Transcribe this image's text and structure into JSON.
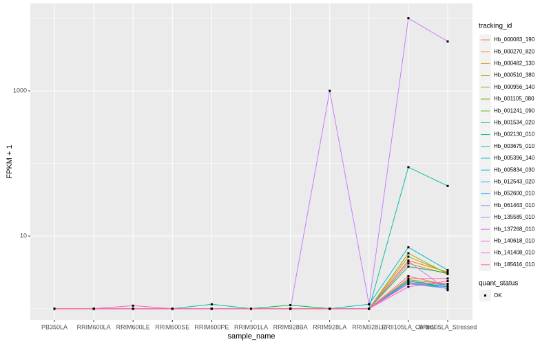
{
  "chart_data": {
    "type": "line",
    "y_scale": "log",
    "grid": true,
    "x_label": "sample_name",
    "y_label": "FPKM + 1",
    "legend_title": "tracking_id",
    "legend_position": "right",
    "point_legend_title": "quant_status",
    "point_legend_label": "OK",
    "point_color": "#000000",
    "categories": [
      "PB350LA",
      "RRIM600LA",
      "RRIM600LE",
      "RRIM600SE",
      "RRIM600PE",
      "RRIM901LA",
      "RRIM928BA",
      "RRIM928LA",
      "RRIM928LE",
      "RRII105LA_Control",
      "RRII105LA_Stressed"
    ],
    "ylim": [
      0.7,
      16000
    ],
    "yticks": [
      10,
      1000
    ],
    "y_minor_ticks": [
      1,
      100,
      10000
    ],
    "series": [
      {
        "name": "Hb_000083_190",
        "color": "#F8766D",
        "values": [
          1,
          1,
          1,
          1,
          1,
          1,
          1,
          1,
          1,
          2.8,
          2.1
        ]
      },
      {
        "name": "Hb_000270_820",
        "color": "#EA8331",
        "values": [
          1,
          1,
          1,
          1,
          1,
          1,
          1,
          1,
          1,
          4.2,
          3.0
        ]
      },
      {
        "name": "Hb_000482_130",
        "color": "#D89000",
        "values": [
          1,
          1,
          1,
          1,
          1,
          1,
          1,
          1,
          1,
          4.6,
          3.2
        ]
      },
      {
        "name": "Hb_000510_380",
        "color": "#C09B00",
        "values": [
          1,
          1,
          1,
          1,
          1,
          1,
          1,
          1,
          1,
          5.2,
          3.1
        ]
      },
      {
        "name": "Hb_000956_140",
        "color": "#A3A500",
        "values": [
          1,
          1,
          1,
          1,
          1,
          1,
          1,
          1,
          1,
          5.8,
          3.0
        ]
      },
      {
        "name": "Hb_001105_080",
        "color": "#7CAE00",
        "values": [
          1,
          1,
          1,
          1,
          1,
          1,
          1,
          1,
          1,
          2.5,
          2.2
        ]
      },
      {
        "name": "Hb_001241_090",
        "color": "#39B600",
        "values": [
          1,
          1,
          1,
          1,
          1,
          1,
          1,
          1,
          1,
          2.4,
          2.0
        ]
      },
      {
        "name": "Hb_001534_020",
        "color": "#00BB4E",
        "values": [
          1,
          1,
          1,
          1,
          1,
          1,
          1.12,
          1,
          1,
          3.8,
          3.1
        ]
      },
      {
        "name": "Hb_002130_010",
        "color": "#00BF7D",
        "values": [
          1,
          1,
          1,
          1,
          1,
          1,
          1,
          1,
          1,
          2.3,
          2.0
        ]
      },
      {
        "name": "Hb_003675_010",
        "color": "#00C1A3",
        "values": [
          1,
          1,
          1,
          1,
          1.15,
          1,
          1,
          1,
          1,
          89,
          49
        ]
      },
      {
        "name": "Hb_005396_140",
        "color": "#00BFC4",
        "values": [
          1,
          1,
          1,
          1,
          1,
          1,
          1,
          1,
          1.15,
          7,
          3.4
        ]
      },
      {
        "name": "Hb_005834_030",
        "color": "#00BAE0",
        "values": [
          1,
          1,
          1,
          1,
          1,
          1,
          1,
          1,
          1,
          2.4,
          2.1
        ]
      },
      {
        "name": "Hb_012543_020",
        "color": "#00B0F6",
        "values": [
          1,
          1,
          1,
          1,
          1,
          1,
          1,
          1,
          1,
          2.2,
          2.0
        ]
      },
      {
        "name": "Hb_052600_010",
        "color": "#35A2FF",
        "values": [
          1,
          1,
          1,
          1,
          1,
          1,
          1,
          1,
          1,
          2.3,
          1.9
        ]
      },
      {
        "name": "Hb_061463_010",
        "color": "#9590FF",
        "values": [
          1,
          1,
          1,
          1,
          1,
          1,
          1,
          1,
          1,
          2.2,
          1.9
        ]
      },
      {
        "name": "Hb_135585_010",
        "color": "#C77CFF",
        "values": [
          1,
          1,
          1,
          1,
          1,
          1,
          1,
          1000,
          1.15,
          10000,
          4800
        ]
      },
      {
        "name": "Hb_137268_010",
        "color": "#E76BF3",
        "values": [
          1,
          1,
          1,
          1,
          1,
          1,
          1,
          1,
          1,
          4.5,
          1.8
        ]
      },
      {
        "name": "Hb_140618_010",
        "color": "#FA62DB",
        "values": [
          1,
          1,
          1,
          1,
          1,
          1,
          1,
          1,
          1,
          2.2,
          2.2
        ]
      },
      {
        "name": "Hb_141408_010",
        "color": "#FF62BC",
        "values": [
          1,
          1,
          1.1,
          1,
          1,
          1,
          1,
          1,
          1,
          2.0,
          2.4
        ]
      },
      {
        "name": "Hb_185616_010",
        "color": "#FF6C91",
        "values": [
          1,
          1,
          1,
          1,
          1,
          1,
          1,
          1,
          1,
          2.6,
          2.6
        ]
      }
    ]
  }
}
